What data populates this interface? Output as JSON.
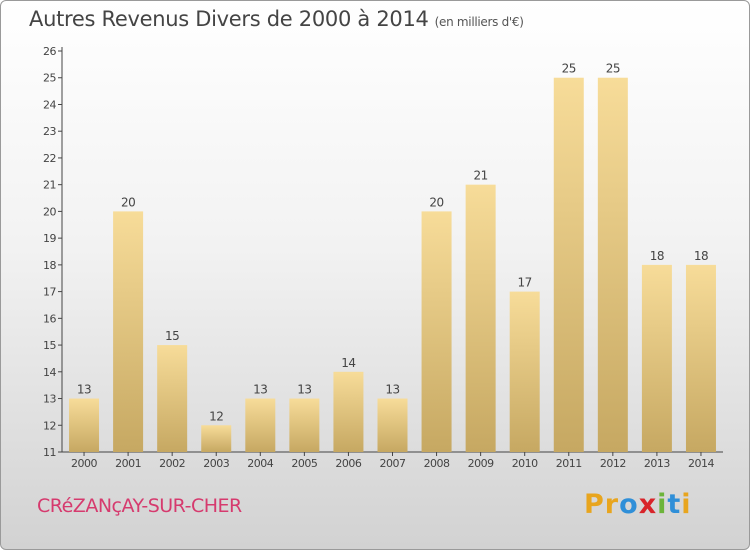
{
  "header": {
    "title": "Autres Revenus Divers de 2000 à 2014",
    "subtitle": "(en milliers d'€)"
  },
  "footer": {
    "location": "CRéZANçAY-SUR-CHER",
    "logo": "Proxiti"
  },
  "colors": {
    "bar_light": "#f7dc99",
    "bar_dark": "#c6a862",
    "location_text": "#d63a6e",
    "logo_letters": [
      "#e8a51e",
      "#e8a51e",
      "#2f8fd8",
      "#d8242a",
      "#6cb43a",
      "#2f8fd8",
      "#e8a51e"
    ]
  },
  "chart_data": {
    "type": "bar",
    "title": "Autres Revenus Divers de 2000 à 2014",
    "subtitle": "(en milliers d'€)",
    "categories": [
      "2000",
      "2001",
      "2002",
      "2003",
      "2004",
      "2005",
      "2006",
      "2007",
      "2008",
      "2009",
      "2010",
      "2011",
      "2012",
      "2013",
      "2014"
    ],
    "values": [
      13,
      20,
      15,
      12,
      13,
      13,
      14,
      13,
      20,
      21,
      17,
      25,
      25,
      18,
      18
    ],
    "ylim": [
      11,
      26
    ],
    "yticks": [
      11,
      12,
      13,
      14,
      15,
      16,
      17,
      18,
      19,
      20,
      21,
      22,
      23,
      24,
      25,
      26
    ],
    "grid": false,
    "legend": "none"
  }
}
